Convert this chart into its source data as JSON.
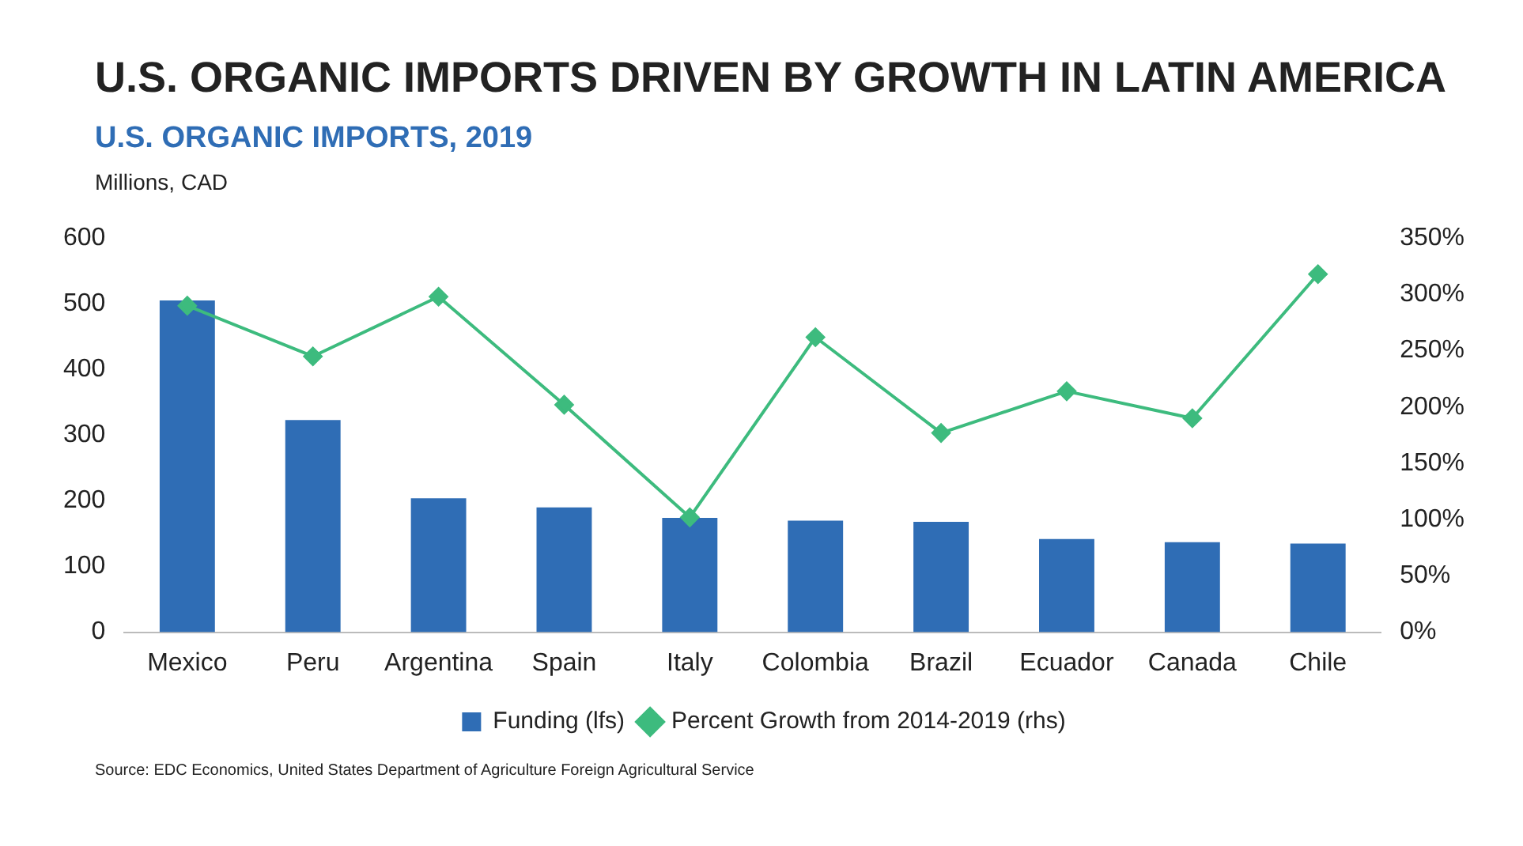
{
  "chart_data": {
    "type": "bar",
    "title": "U.S. ORGANIC IMPORTS DRIVEN BY GROWTH IN LATIN AMERICA",
    "subtitle": "U.S. ORGANIC IMPORTS, 2019",
    "ylabel": "Millions, CAD",
    "categories": [
      "Mexico",
      "Peru",
      "Argentina",
      "Spain",
      "Italy",
      "Colombia",
      "Brazil",
      "Ecuador",
      "Canada",
      "Chile"
    ],
    "series": [
      {
        "name": "Funding (lfs)",
        "color": "#2f6db5",
        "values": [
          505,
          323,
          204,
          190,
          174,
          170,
          168,
          142,
          137,
          135
        ]
      },
      {
        "name": "Percent Growth from 2014-2019 (rhs)",
        "type": "line",
        "axis": "y2",
        "color": "#3dbb7e",
        "values": [
          290,
          245,
          298,
          202,
          102,
          262,
          177,
          214,
          190,
          318
        ]
      }
    ],
    "ylim": [
      0,
      600
    ],
    "yticks": [
      0,
      100,
      200,
      300,
      400,
      500,
      600
    ],
    "y2lim": [
      0,
      350
    ],
    "y2ticks": [
      {
        "value": 0,
        "label": "0%"
      },
      {
        "value": 50,
        "label": "50%"
      },
      {
        "value": 100,
        "label": "100%"
      },
      {
        "value": 150,
        "label": "150%"
      },
      {
        "value": 200,
        "label": "200%"
      },
      {
        "value": 250,
        "label": "250%"
      },
      {
        "value": 300,
        "label": "300%"
      },
      {
        "value": 350,
        "label": "350%"
      }
    ],
    "grid": false,
    "legend": "bottom",
    "marker": "diamond",
    "line_style": "solid",
    "annotations": [
      "Source: EDC Economics, United States Department of Agriculture Foreign Agricultural Service"
    ]
  }
}
